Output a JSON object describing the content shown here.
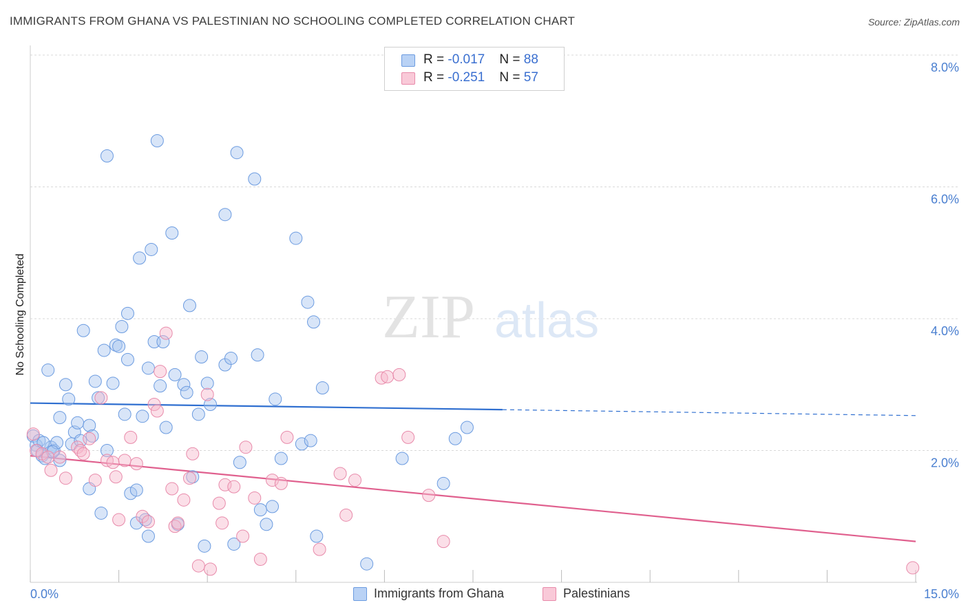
{
  "title": "IMMIGRANTS FROM GHANA VS PALESTINIAN NO SCHOOLING COMPLETED CORRELATION CHART",
  "source": "Source: ZipAtlas.com",
  "watermark": {
    "zip": "ZIP",
    "atlas": "atlas"
  },
  "legend": {
    "ghana": {
      "r_label": "R = ",
      "r_value": "-0.017",
      "n_label": "N = ",
      "n_value": "88"
    },
    "palestinian": {
      "r_label": "R = ",
      "r_value": "-0.251",
      "n_label": "N = ",
      "n_value": "57"
    }
  },
  "colors": {
    "ghana_fill": "#a8c6f0",
    "ghana_stroke": "#6b9be0",
    "ghana_line": "#2f6fd0",
    "pal_fill": "#f6b8cd",
    "pal_stroke": "#e88aaa",
    "pal_line": "#e0608e",
    "grid": "#d8d8d8",
    "axis_text": "#4a7fd0"
  },
  "chart_data": {
    "type": "scatter",
    "title": "IMMIGRANTS FROM GHANA VS PALESTINIAN NO SCHOOLING COMPLETED CORRELATION CHART",
    "xlabel": "",
    "ylabel": "No Schooling Completed",
    "xlim": [
      0,
      15
    ],
    "ylim": [
      0,
      8
    ],
    "x_tick_labels": [
      "0.0%",
      "15.0%"
    ],
    "y_ticks": [
      2,
      4,
      6,
      8
    ],
    "y_tick_labels": [
      "2.0%",
      "4.0%",
      "6.0%",
      "8.0%"
    ],
    "grid": true,
    "legend_position": "top-center",
    "series": [
      {
        "name": "Immigrants from Ghana",
        "trend": {
          "x": [
            0,
            8
          ],
          "y": [
            2.72,
            2.62
          ],
          "dashed_to": [
            15,
            2.53
          ]
        },
        "points": [
          [
            0.05,
            2.22
          ],
          [
            0.1,
            2.08
          ],
          [
            0.15,
            2.15
          ],
          [
            0.2,
            1.92
          ],
          [
            0.25,
            1.88
          ],
          [
            0.3,
            3.22
          ],
          [
            0.35,
            2.05
          ],
          [
            0.4,
            2.0
          ],
          [
            0.45,
            2.12
          ],
          [
            0.5,
            1.85
          ],
          [
            0.5,
            2.5
          ],
          [
            0.6,
            3.0
          ],
          [
            0.65,
            2.78
          ],
          [
            0.7,
            2.1
          ],
          [
            0.75,
            2.28
          ],
          [
            0.8,
            2.42
          ],
          [
            0.85,
            2.15
          ],
          [
            0.9,
            3.82
          ],
          [
            1.0,
            2.38
          ],
          [
            1.0,
            1.42
          ],
          [
            1.05,
            2.22
          ],
          [
            1.1,
            3.05
          ],
          [
            1.15,
            2.8
          ],
          [
            1.2,
            1.05
          ],
          [
            1.25,
            3.52
          ],
          [
            1.3,
            6.47
          ],
          [
            1.3,
            2.0
          ],
          [
            1.4,
            3.02
          ],
          [
            1.45,
            3.6
          ],
          [
            1.5,
            3.58
          ],
          [
            1.55,
            3.88
          ],
          [
            1.6,
            2.55
          ],
          [
            1.65,
            4.08
          ],
          [
            1.65,
            3.38
          ],
          [
            1.7,
            1.35
          ],
          [
            1.8,
            1.4
          ],
          [
            1.8,
            0.9
          ],
          [
            1.85,
            4.92
          ],
          [
            1.9,
            2.52
          ],
          [
            1.95,
            0.95
          ],
          [
            2.0,
            3.25
          ],
          [
            2.0,
            0.7
          ],
          [
            2.05,
            5.05
          ],
          [
            2.1,
            3.65
          ],
          [
            2.15,
            6.7
          ],
          [
            2.2,
            2.98
          ],
          [
            2.25,
            3.65
          ],
          [
            2.3,
            2.35
          ],
          [
            2.4,
            5.3
          ],
          [
            2.45,
            3.15
          ],
          [
            2.5,
            0.88
          ],
          [
            2.6,
            3.0
          ],
          [
            2.65,
            2.88
          ],
          [
            2.7,
            4.2
          ],
          [
            2.75,
            1.6
          ],
          [
            2.85,
            2.55
          ],
          [
            2.9,
            3.42
          ],
          [
            2.95,
            0.55
          ],
          [
            3.0,
            3.02
          ],
          [
            3.05,
            2.7
          ],
          [
            3.3,
            5.58
          ],
          [
            3.3,
            3.3
          ],
          [
            3.4,
            3.4
          ],
          [
            3.45,
            0.58
          ],
          [
            3.5,
            6.52
          ],
          [
            3.55,
            1.82
          ],
          [
            3.8,
            6.12
          ],
          [
            3.85,
            3.45
          ],
          [
            3.9,
            1.1
          ],
          [
            4.0,
            0.88
          ],
          [
            4.1,
            1.15
          ],
          [
            4.15,
            2.78
          ],
          [
            4.25,
            1.88
          ],
          [
            4.5,
            5.22
          ],
          [
            4.6,
            2.1
          ],
          [
            4.7,
            4.25
          ],
          [
            4.75,
            2.15
          ],
          [
            4.8,
            3.95
          ],
          [
            4.85,
            0.7
          ],
          [
            4.95,
            2.95
          ],
          [
            5.7,
            0.28
          ],
          [
            6.3,
            1.88
          ],
          [
            7.0,
            1.5
          ],
          [
            7.2,
            2.18
          ],
          [
            7.4,
            2.35
          ],
          [
            0.12,
            2.0
          ],
          [
            0.22,
            2.12
          ],
          [
            0.38,
            1.98
          ]
        ]
      },
      {
        "name": "Palestinians",
        "trend": {
          "x": [
            0,
            15
          ],
          "y": [
            1.92,
            0.62
          ]
        },
        "points": [
          [
            0.05,
            2.25
          ],
          [
            0.1,
            2.0
          ],
          [
            0.2,
            1.95
          ],
          [
            0.3,
            1.9
          ],
          [
            0.35,
            1.7
          ],
          [
            0.5,
            1.9
          ],
          [
            0.6,
            1.58
          ],
          [
            0.8,
            2.05
          ],
          [
            0.85,
            2.0
          ],
          [
            0.9,
            1.95
          ],
          [
            1.0,
            2.18
          ],
          [
            1.1,
            1.55
          ],
          [
            1.2,
            2.8
          ],
          [
            1.3,
            1.85
          ],
          [
            1.4,
            1.82
          ],
          [
            1.45,
            1.6
          ],
          [
            1.5,
            0.95
          ],
          [
            1.6,
            1.85
          ],
          [
            1.7,
            2.2
          ],
          [
            1.8,
            1.8
          ],
          [
            1.9,
            1.0
          ],
          [
            2.0,
            0.92
          ],
          [
            2.1,
            2.7
          ],
          [
            2.15,
            2.6
          ],
          [
            2.2,
            3.2
          ],
          [
            2.3,
            3.78
          ],
          [
            2.4,
            1.42
          ],
          [
            2.45,
            0.85
          ],
          [
            2.5,
            0.9
          ],
          [
            2.6,
            1.25
          ],
          [
            2.7,
            1.58
          ],
          [
            2.75,
            1.95
          ],
          [
            2.85,
            0.25
          ],
          [
            3.0,
            2.85
          ],
          [
            3.05,
            0.2
          ],
          [
            3.2,
            1.2
          ],
          [
            3.25,
            0.9
          ],
          [
            3.3,
            1.48
          ],
          [
            3.45,
            1.45
          ],
          [
            3.6,
            0.7
          ],
          [
            3.65,
            2.05
          ],
          [
            3.8,
            1.28
          ],
          [
            3.9,
            0.35
          ],
          [
            4.1,
            1.55
          ],
          [
            4.25,
            1.5
          ],
          [
            4.35,
            2.2
          ],
          [
            4.9,
            0.5
          ],
          [
            5.25,
            1.65
          ],
          [
            5.35,
            1.02
          ],
          [
            5.5,
            1.55
          ],
          [
            5.95,
            3.1
          ],
          [
            6.05,
            3.12
          ],
          [
            6.25,
            3.15
          ],
          [
            6.4,
            2.2
          ],
          [
            6.75,
            1.32
          ],
          [
            7.0,
            0.62
          ],
          [
            14.95,
            0.22
          ]
        ]
      }
    ]
  },
  "bottom_legend": [
    "Immigrants from Ghana",
    "Palestinians"
  ]
}
